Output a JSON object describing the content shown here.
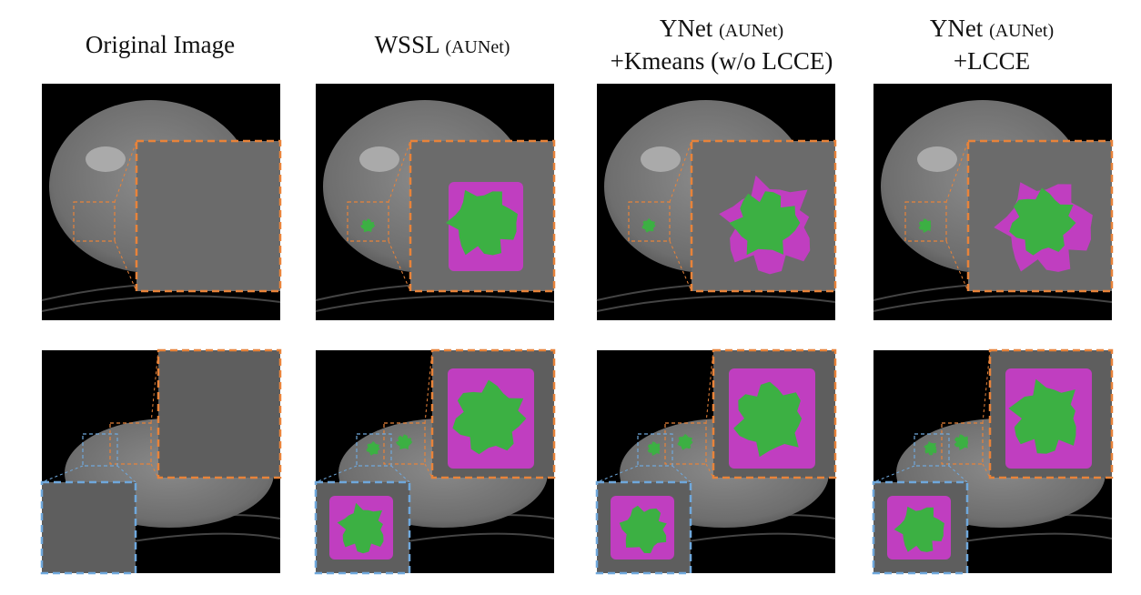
{
  "columns": [
    {
      "name": "Original Image"
    },
    {
      "name": "WSSL",
      "backbone": "(AUNet)"
    },
    {
      "name": "YNet",
      "backbone": "(AUNet)",
      "suffix": "+Kmeans (w/o LCCE)"
    },
    {
      "name": "YNet",
      "backbone": "(AUNet)",
      "suffix": "+LCCE"
    }
  ]
}
